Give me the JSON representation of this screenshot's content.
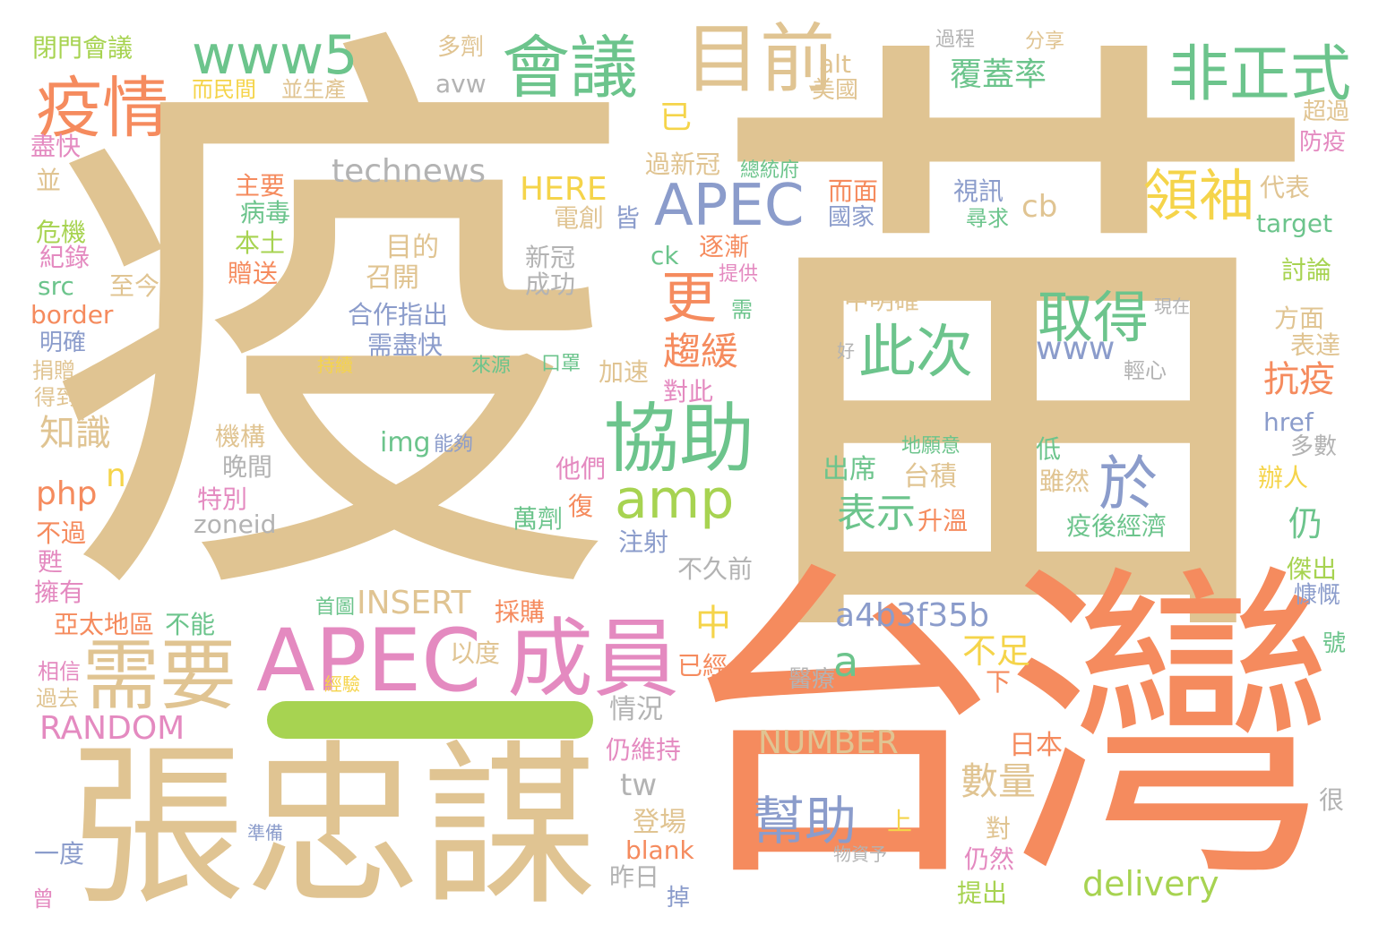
{
  "palette": {
    "tan": "#e0c492",
    "orange": "#f58b5e",
    "green": "#6cc48c",
    "blue": "#8b9ccb",
    "pink": "#e48ac0",
    "lime": "#a7d351",
    "yellow": "#f5d44a",
    "gray": "#b3b3b3"
  },
  "words": [
    {
      "text": "疫",
      "color": "tan"
    },
    {
      "text": "苗",
      "color": "tan"
    },
    {
      "text": "台灣",
      "color": "orange"
    },
    {
      "text": "張忠謀",
      "color": "tan"
    },
    {
      "text": "APEC",
      "color": "pink"
    },
    {
      "text": "成員",
      "color": "pink"
    },
    {
      "text": "需要",
      "color": "tan"
    },
    {
      "text": "協助",
      "color": "green"
    },
    {
      "text": "APEC",
      "color": "blue"
    },
    {
      "text": "疫情",
      "color": "orange"
    },
    {
      "text": "會議",
      "color": "green"
    },
    {
      "text": "www5",
      "color": "green"
    },
    {
      "text": "目前",
      "color": "tan"
    },
    {
      "text": "非正式",
      "color": "green"
    },
    {
      "text": "領袖",
      "color": "yellow"
    },
    {
      "text": "amp",
      "color": "lime"
    },
    {
      "text": "更",
      "color": "orange"
    },
    {
      "text": "取得",
      "color": "green"
    },
    {
      "text": "此次",
      "color": "green"
    },
    {
      "text": "於",
      "color": "blue"
    },
    {
      "text": "幫助",
      "color": "blue"
    },
    {
      "text": "technews",
      "color": "gray"
    },
    {
      "text": "覆蓋率",
      "color": "green"
    },
    {
      "text": "HERE",
      "color": "yellow"
    },
    {
      "text": "cb",
      "color": "tan"
    },
    {
      "text": "趨緩",
      "color": "orange"
    },
    {
      "text": "a4b3f35b",
      "color": "blue"
    },
    {
      "text": "a",
      "color": "green"
    },
    {
      "text": "表示",
      "color": "green"
    },
    {
      "text": "INSERT",
      "color": "tan"
    },
    {
      "text": "RANDOM",
      "color": "pink"
    },
    {
      "text": "NUMBER",
      "color": "tan"
    },
    {
      "text": "www",
      "color": "blue"
    },
    {
      "text": "不足",
      "color": "yellow"
    },
    {
      "text": "抗疫",
      "color": "orange"
    },
    {
      "text": "delivery",
      "color": "lime"
    },
    {
      "text": "數量",
      "color": "tan"
    },
    {
      "text": "知識",
      "color": "tan"
    },
    {
      "text": "php",
      "color": "orange"
    },
    {
      "text": "n",
      "color": "yellow"
    },
    {
      "text": "中",
      "color": "yellow"
    },
    {
      "text": "已",
      "color": "yellow"
    },
    {
      "text": "仍",
      "color": "green"
    },
    {
      "text": "tw",
      "color": "gray"
    },
    {
      "text": "閉門會議",
      "color": "lime"
    },
    {
      "text": "多劑",
      "color": "tan"
    },
    {
      "text": "過程",
      "color": "gray"
    },
    {
      "text": "分享",
      "color": "tan"
    },
    {
      "text": "alt",
      "color": "tan"
    },
    {
      "text": "美國",
      "color": "tan"
    },
    {
      "text": "avw",
      "color": "gray"
    },
    {
      "text": "而民間",
      "color": "yellow"
    },
    {
      "text": "並生產",
      "color": "tan"
    },
    {
      "text": "盡快",
      "color": "pink"
    },
    {
      "text": "並",
      "color": "tan"
    },
    {
      "text": "危機",
      "color": "lime"
    },
    {
      "text": "紀錄",
      "color": "pink"
    },
    {
      "text": "src",
      "color": "green"
    },
    {
      "text": "border",
      "color": "orange"
    },
    {
      "text": "明確",
      "color": "blue"
    },
    {
      "text": "捐贈",
      "color": "tan"
    },
    {
      "text": "得到",
      "color": "tan"
    },
    {
      "text": "主要",
      "color": "orange"
    },
    {
      "text": "病毒",
      "color": "green"
    },
    {
      "text": "本土",
      "color": "lime"
    },
    {
      "text": "贈送",
      "color": "orange"
    },
    {
      "text": "至今",
      "color": "tan"
    },
    {
      "text": "過新冠",
      "color": "tan"
    },
    {
      "text": "總統府",
      "color": "green"
    },
    {
      "text": "電創",
      "color": "tan"
    },
    {
      "text": "皆",
      "color": "blue"
    },
    {
      "text": "目的",
      "color": "tan"
    },
    {
      "text": "召開",
      "color": "tan"
    },
    {
      "text": "新冠",
      "color": "gray"
    },
    {
      "text": "成功",
      "color": "gray"
    },
    {
      "text": "ck",
      "color": "green"
    },
    {
      "text": "逐漸",
      "color": "orange"
    },
    {
      "text": "提供",
      "color": "pink"
    },
    {
      "text": "需",
      "color": "green"
    },
    {
      "text": "合作指出",
      "color": "blue"
    },
    {
      "text": "需盡快",
      "color": "blue"
    },
    {
      "text": "持續",
      "color": "yellow"
    },
    {
      "text": "來源",
      "color": "green"
    },
    {
      "text": "口罩",
      "color": "green"
    },
    {
      "text": "加速",
      "color": "tan"
    },
    {
      "text": "對此",
      "color": "pink"
    },
    {
      "text": "而面",
      "color": "orange"
    },
    {
      "text": "國家",
      "color": "blue"
    },
    {
      "text": "視訊",
      "color": "blue"
    },
    {
      "text": "尋求",
      "color": "green"
    },
    {
      "text": "代表",
      "color": "tan"
    },
    {
      "text": "超過",
      "color": "tan"
    },
    {
      "text": "防疫",
      "color": "pink"
    },
    {
      "text": "target",
      "color": "green"
    },
    {
      "text": "討論",
      "color": "lime"
    },
    {
      "text": "方面",
      "color": "tan"
    },
    {
      "text": "表達",
      "color": "tan"
    },
    {
      "text": "現在",
      "color": "gray"
    },
    {
      "text": "輕心",
      "color": "gray"
    },
    {
      "text": "好",
      "color": "gray"
    },
    {
      "text": "中明確",
      "color": "tan"
    },
    {
      "text": "地願意",
      "color": "green"
    },
    {
      "text": "出席",
      "color": "green"
    },
    {
      "text": "台積",
      "color": "tan"
    },
    {
      "text": "低",
      "color": "green"
    },
    {
      "text": "雖然",
      "color": "tan"
    },
    {
      "text": "升溫",
      "color": "orange"
    },
    {
      "text": "疫後經濟",
      "color": "green"
    },
    {
      "text": "href",
      "color": "blue"
    },
    {
      "text": "多數",
      "color": "gray"
    },
    {
      "text": "辦人",
      "color": "yellow"
    },
    {
      "text": "傑出",
      "color": "lime"
    },
    {
      "text": "慷慨",
      "color": "blue"
    },
    {
      "text": "號",
      "color": "green"
    },
    {
      "text": "img",
      "color": "green"
    },
    {
      "text": "能夠",
      "color": "blue"
    },
    {
      "text": "機構",
      "color": "tan"
    },
    {
      "text": "晚間",
      "color": "gray"
    },
    {
      "text": "他們",
      "color": "pink"
    },
    {
      "text": "特別",
      "color": "pink"
    },
    {
      "text": "zoneid",
      "color": "gray"
    },
    {
      "text": "萬劑",
      "color": "green"
    },
    {
      "text": "復",
      "color": "orange"
    },
    {
      "text": "注射",
      "color": "blue"
    },
    {
      "text": "不久前",
      "color": "gray"
    },
    {
      "text": "不過",
      "color": "orange"
    },
    {
      "text": "甦",
      "color": "pink"
    },
    {
      "text": "擁有",
      "color": "pink"
    },
    {
      "text": "亞太地區",
      "color": "orange"
    },
    {
      "text": "不能",
      "color": "green"
    },
    {
      "text": "首圖",
      "color": "green"
    },
    {
      "text": "採購",
      "color": "orange"
    },
    {
      "text": "以度",
      "color": "tan"
    },
    {
      "text": "已經",
      "color": "orange"
    },
    {
      "text": "下",
      "color": "orange"
    },
    {
      "text": "相信",
      "color": "pink"
    },
    {
      "text": "過去",
      "color": "tan"
    },
    {
      "text": "經驗",
      "color": "yellow"
    },
    {
      "text": "醫療",
      "color": "gray"
    },
    {
      "text": "情況",
      "color": "gray"
    },
    {
      "text": "仍維持",
      "color": "pink"
    },
    {
      "text": "日本",
      "color": "orange"
    },
    {
      "text": "登場",
      "color": "tan"
    },
    {
      "text": "blank",
      "color": "orange"
    },
    {
      "text": "昨日",
      "color": "gray"
    },
    {
      "text": "掉",
      "color": "blue"
    },
    {
      "text": "上",
      "color": "yellow"
    },
    {
      "text": "對",
      "color": "tan"
    },
    {
      "text": "仍然",
      "color": "pink"
    },
    {
      "text": "提出",
      "color": "lime"
    },
    {
      "text": "很",
      "color": "gray"
    },
    {
      "text": "一度",
      "color": "blue"
    },
    {
      "text": "準備",
      "color": "blue"
    },
    {
      "text": "物資予",
      "color": "gray"
    },
    {
      "text": "曾",
      "color": "pink"
    }
  ]
}
